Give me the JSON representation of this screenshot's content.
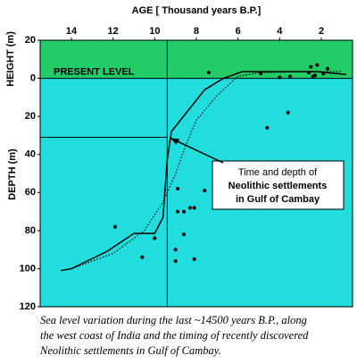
{
  "chart_data": {
    "type": "line",
    "title": "AGE [ Thousand years B.P.]",
    "y_label_top": "HEIGHT (m)",
    "y_label": "DEPTH (m)",
    "band_label": "PRESENT LEVEL",
    "xlim": [
      15.5,
      0.5
    ],
    "xticks": [
      14,
      12,
      10,
      8,
      6,
      4,
      2
    ],
    "ylim": [
      -20,
      120
    ],
    "yticks": [
      {
        "value": -20,
        "label": "20"
      },
      0,
      20,
      40,
      60,
      80,
      100,
      120
    ],
    "colors": {
      "above": "#22cc66",
      "below": "#22dddd"
    },
    "series": [
      {
        "style": "solid",
        "color": "#000",
        "x": [
          14.5,
          14,
          12.3,
          11,
          10,
          9.6,
          9.4,
          9.2,
          8.4,
          7.6,
          6.7,
          5.8,
          4.6,
          2.2,
          0.8
        ],
        "values": [
          101,
          100,
          91,
          81.5,
          81.5,
          73,
          43,
          28,
          17,
          6,
          0,
          -3.5,
          -3.5,
          -3.5,
          -2
        ]
      },
      {
        "style": "dotted",
        "color": "#000",
        "x": [
          14.5,
          14,
          12,
          10.5,
          9.6,
          9,
          8.5,
          8,
          7,
          6,
          5,
          3,
          1
        ],
        "values": [
          101,
          100,
          92,
          80,
          65,
          50,
          35,
          22,
          9,
          -1,
          -3,
          -3.5,
          -3.5
        ]
      }
    ],
    "points": {
      "color": "#000",
      "x": [
        7.4,
        4.9,
        4,
        3.5,
        2.5,
        2.2,
        2.6,
        1.7,
        2.4,
        1.9,
        2.3,
        4.6,
        3.6,
        11.9,
        10.6,
        10,
        8.9,
        8.6,
        8.3,
        8.1,
        7.6,
        8.9,
        8.6,
        9,
        9,
        8.1
      ],
      "values": [
        -3,
        -2.5,
        -0.5,
        -1,
        -6,
        -7,
        -3,
        -5,
        -1,
        -2.5,
        -1.5,
        26,
        18,
        78,
        94,
        84,
        58,
        70,
        68,
        68,
        59,
        70,
        82,
        90,
        96,
        95
      ]
    },
    "reference": {
      "x": 9.4,
      "y": 31
    },
    "annotation": [
      "Time and depth of",
      "Neolithic settlements",
      "in  Gulf of Cambay"
    ],
    "caption": [
      "Sea level variation during the last ~14500 years B.P., along",
      "the west coast of India and the timing of recently discovered",
      "Neolithic settlements in Gulf of Cambay."
    ]
  }
}
